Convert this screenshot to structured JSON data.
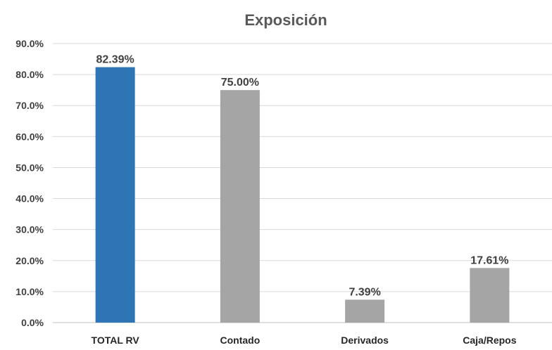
{
  "chart_data": {
    "type": "bar",
    "title": "Exposición",
    "xlabel": "",
    "ylabel": "",
    "categories": [
      "TOTAL RV",
      "Contado",
      "Derivados",
      "Caja/Repos"
    ],
    "values": [
      82.39,
      75.0,
      7.39,
      17.61
    ],
    "data_labels": [
      "82.39%",
      "75.00%",
      "7.39%",
      "17.61%"
    ],
    "ylim": [
      0,
      90
    ],
    "yticks": [
      0,
      10,
      20,
      30,
      40,
      50,
      60,
      70,
      80,
      90
    ],
    "ytick_labels": [
      "0.0%",
      "10.0%",
      "20.0%",
      "30.0%",
      "40.0%",
      "50.0%",
      "60.0%",
      "70.0%",
      "80.0%",
      "90.0%"
    ],
    "grid": true,
    "legend": "none",
    "bar_colors": [
      "#2e75b6",
      "#a5a5a5",
      "#a5a5a5",
      "#a5a5a5"
    ]
  }
}
